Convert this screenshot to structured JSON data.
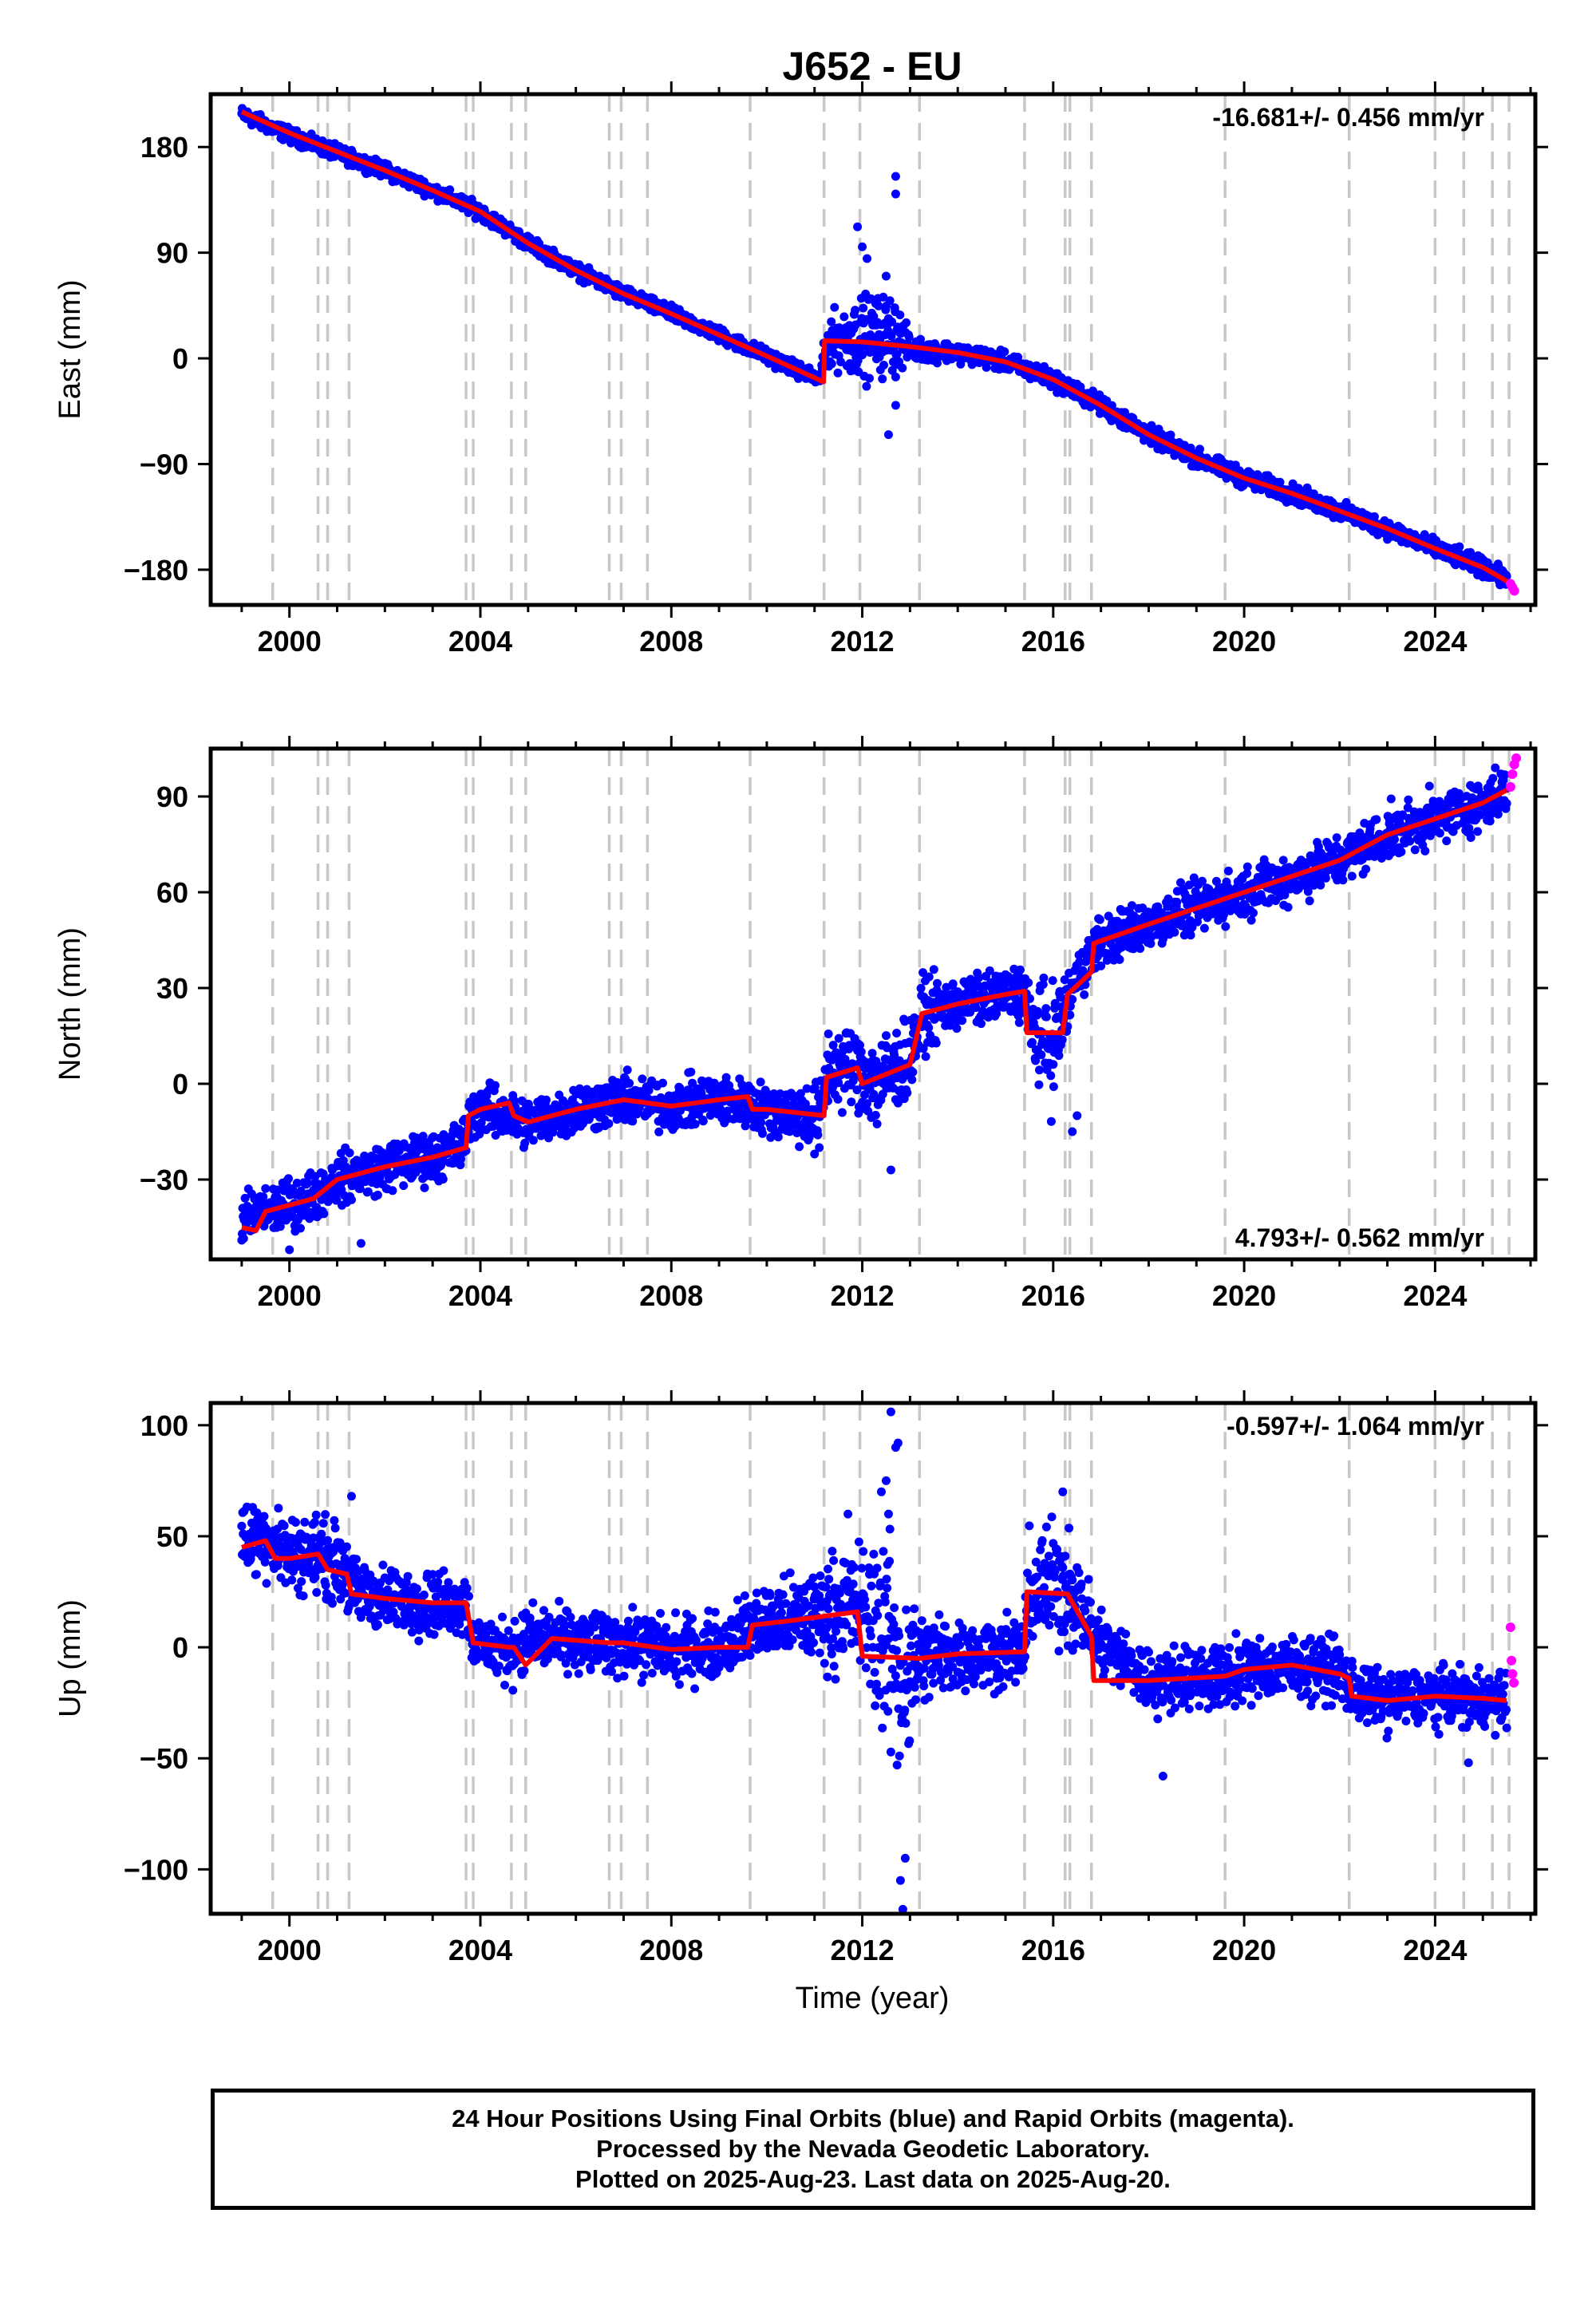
{
  "page": {
    "title": "J652 - EU",
    "xlabel": "Time (year)",
    "footer_lines": [
      "24 Hour Positions Using Final Orbits (blue) and Rapid Orbits (magenta).",
      "Processed by the Nevada Geodetic Laboratory.",
      "Plotted on 2025-Aug-23. Last data on 2025-Aug-20."
    ]
  },
  "colors": {
    "final": "#0000ff",
    "rapid": "#ff00ff",
    "model": "#ff0000",
    "steps": "#c8c8c8",
    "frame": "#000000"
  },
  "chart_data": [
    {
      "type": "scatter",
      "title": "J652 - EU",
      "ylabel": "East (mm)",
      "xlabel": "",
      "rate_text": "-16.681+/- 0.456 mm/yr",
      "rate_position": "top-right",
      "xlim": [
        1998.35,
        2026.1
      ],
      "ylim": [
        -210,
        225
      ],
      "xticks": [
        2000,
        2004,
        2008,
        2012,
        2016,
        2020,
        2024
      ],
      "yticks": [
        180,
        90,
        0,
        -90,
        -180
      ],
      "step_times": [
        1999.65,
        2000.6,
        2000.8,
        2001.25,
        2003.7,
        2003.85,
        2004.65,
        2004.95,
        2006.7,
        2006.95,
        2007.5,
        2009.65,
        2011.2,
        2011.95,
        2013.2,
        2015.4,
        2016.25,
        2016.35,
        2016.8,
        2019.6,
        2022.2,
        2024.0,
        2024.6,
        2025.2,
        2025.55
      ],
      "model": {
        "x": [
          1999.0,
          2000.0,
          2002.0,
          2003.0,
          2004.0,
          2005.0,
          2006.0,
          2007.0,
          2008.0,
          2009.0,
          2010.0,
          2011.19,
          2011.21,
          2012.0,
          2013.0,
          2014.0,
          2015.0,
          2016.0,
          2017.0,
          2018.0,
          2019.0,
          2020.0,
          2021.0,
          2022.0,
          2023.0,
          2024.0,
          2025.0,
          2025.6
        ],
        "y": [
          210,
          192,
          160,
          143,
          125,
          98,
          75,
          55,
          38,
          20,
          2,
          -20,
          15,
          14,
          10,
          5,
          -3,
          -18,
          -40,
          -65,
          -85,
          -102,
          -115,
          -130,
          -145,
          -162,
          -178,
          -192
        ]
      },
      "final_series": {
        "x": [
          1999.0,
          2000.0,
          2002.0,
          2003.0,
          2004.0,
          2005.0,
          2006.0,
          2007.0,
          2008.0,
          2009.0,
          2010.0,
          2011.1,
          2011.3,
          2012.0,
          2012.7,
          2013.0,
          2014.0,
          2015.0,
          2016.0,
          2017.0,
          2018.0,
          2019.0,
          2020.0,
          2021.0,
          2022.0,
          2023.0,
          2024.0,
          2025.0,
          2025.5
        ],
        "y": [
          208,
          190,
          160,
          143,
          125,
          98,
          75,
          55,
          38,
          20,
          2,
          -18,
          15,
          18,
          20,
          8,
          5,
          -3,
          -18,
          -40,
          -65,
          -85,
          -102,
          -115,
          -130,
          -145,
          -162,
          -178,
          -188
        ],
        "spread": [
          4,
          4,
          4,
          4,
          4,
          4,
          4,
          4,
          4,
          4,
          4,
          4,
          14,
          22,
          22,
          6,
          5,
          5,
          5,
          5,
          5,
          5,
          5,
          5,
          5,
          5,
          5,
          5,
          5
        ]
      },
      "outliers": {
        "x": [
          2011.9,
          2012.0,
          2012.1,
          2012.5,
          2012.7,
          2012.7,
          2012.55,
          2012.7
        ],
        "y": [
          112,
          95,
          85,
          70,
          155,
          140,
          -65,
          -40
        ]
      },
      "rapid": {
        "x": [
          2025.58,
          2025.62,
          2025.66
        ],
        "y": [
          -192,
          -195,
          -198
        ]
      }
    },
    {
      "type": "scatter",
      "ylabel": "North (mm)",
      "xlabel": "",
      "rate_text": "4.793+/- 0.562 mm/yr",
      "rate_position": "bottom-right",
      "xlim": [
        1998.35,
        2026.1
      ],
      "ylim": [
        -55,
        105
      ],
      "xticks": [
        2000,
        2004,
        2008,
        2012,
        2016,
        2020,
        2024
      ],
      "yticks": [
        90,
        60,
        30,
        0,
        -30
      ],
      "step_times": [
        1999.65,
        2000.6,
        2000.8,
        2001.25,
        2003.7,
        2003.85,
        2004.65,
        2004.95,
        2006.7,
        2006.95,
        2007.5,
        2009.65,
        2011.2,
        2011.95,
        2013.2,
        2015.4,
        2016.25,
        2016.35,
        2016.8,
        2019.6,
        2022.2,
        2024.0,
        2024.6,
        2025.2,
        2025.55
      ],
      "model": {
        "x": [
          1999.0,
          1999.3,
          1999.5,
          2000.0,
          2000.5,
          2001.0,
          2002.0,
          2003.0,
          2003.7,
          2003.75,
          2004.0,
          2004.6,
          2004.7,
          2005.0,
          2006.0,
          2007.0,
          2008.0,
          2009.0,
          2009.6,
          2009.7,
          2010.0,
          2011.2,
          2011.25,
          2011.9,
          2012.0,
          2013.0,
          2013.25,
          2014.0,
          2015.0,
          2015.4,
          2015.45,
          2016.2,
          2016.3,
          2016.8,
          2016.85,
          2018.0,
          2019.0,
          2020.0,
          2021.0,
          2022.0,
          2023.0,
          2024.0,
          2025.0,
          2025.5
        ],
        "y": [
          -45,
          -46,
          -40,
          -38,
          -36,
          -30,
          -26,
          -23,
          -20,
          -10,
          -8,
          -6,
          -10,
          -12,
          -8,
          -5,
          -7,
          -5,
          -4,
          -8,
          -8,
          -10,
          2,
          5,
          0,
          6,
          22,
          25,
          28,
          29,
          16,
          16,
          28,
          35,
          44,
          50,
          55,
          60,
          65,
          70,
          78,
          83,
          88,
          92
        ]
      },
      "final_series": {
        "x": [
          1999.0,
          1999.5,
          2000.0,
          2000.5,
          2001.0,
          2002.0,
          2003.0,
          2003.6,
          2003.8,
          2004.0,
          2005.0,
          2006.0,
          2007.0,
          2008.0,
          2009.0,
          2010.0,
          2011.1,
          2011.3,
          2011.9,
          2012.3,
          2013.0,
          2013.3,
          2014.0,
          2015.0,
          2015.4,
          2015.5,
          2016.0,
          2016.3,
          2016.5,
          2016.9,
          2018.0,
          2019.0,
          2020.0,
          2021.0,
          2022.0,
          2023.0,
          2024.0,
          2025.0,
          2025.5
        ],
        "y": [
          -42,
          -40,
          -38,
          -35,
          -30,
          -26,
          -23,
          -20,
          -10,
          -8,
          -12,
          -8,
          -5,
          -7,
          -5,
          -8,
          -10,
          5,
          5,
          0,
          8,
          22,
          25,
          28,
          29,
          18,
          12,
          25,
          33,
          44,
          50,
          55,
          60,
          65,
          70,
          78,
          83,
          88,
          92
        ],
        "spread": [
          5,
          5,
          5,
          5,
          5,
          5,
          5,
          5,
          5,
          5,
          5,
          5,
          5,
          5,
          5,
          5,
          7,
          8,
          8,
          10,
          8,
          7,
          5,
          5,
          6,
          8,
          12,
          7,
          5,
          5,
          5,
          5,
          5,
          5,
          5,
          5,
          5,
          5,
          5
        ]
      },
      "outliers": {
        "x": [
          2000.0,
          2001.5,
          2011.0,
          2011.1,
          2012.6,
          2016.4,
          2016.5
        ],
        "y": [
          -52,
          -50,
          -22,
          -20,
          -27,
          -15,
          -10
        ]
      },
      "rapid": {
        "x": [
          2025.58,
          2025.62,
          2025.66,
          2025.7
        ],
        "y": [
          93,
          97,
          100,
          102
        ]
      }
    },
    {
      "type": "scatter",
      "ylabel": "Up (mm)",
      "xlabel": "Time (year)",
      "rate_text": "-0.597+/- 1.064 mm/yr",
      "rate_position": "top-right",
      "xlim": [
        1998.35,
        2026.1
      ],
      "ylim": [
        -120,
        110
      ],
      "xticks": [
        2000,
        2004,
        2008,
        2012,
        2016,
        2020,
        2024
      ],
      "yticks": [
        100,
        50,
        0,
        -50,
        -100
      ],
      "step_times": [
        1999.65,
        2000.6,
        2000.8,
        2001.25,
        2003.7,
        2003.85,
        2004.65,
        2004.95,
        2006.7,
        2006.95,
        2007.5,
        2009.65,
        2011.2,
        2011.95,
        2013.2,
        2015.4,
        2016.25,
        2016.35,
        2016.8,
        2019.6,
        2022.2,
        2024.0,
        2024.6,
        2025.2,
        2025.55
      ],
      "model": {
        "x": [
          1999.0,
          1999.5,
          1999.7,
          2000.0,
          2000.6,
          2000.8,
          2001.2,
          2001.3,
          2002.0,
          2003.0,
          2003.7,
          2003.85,
          2004.6,
          2004.7,
          2004.95,
          2005.5,
          2006.7,
          2007.0,
          2008.0,
          2009.0,
          2009.6,
          2009.7,
          2010.5,
          2011.2,
          2011.9,
          2012.0,
          2013.2,
          2014.0,
          2015.4,
          2015.45,
          2016.3,
          2016.8,
          2016.85,
          2018.0,
          2019.6,
          2020.0,
          2021.0,
          2022.0,
          2022.2,
          2022.25,
          2023.0,
          2024.0,
          2025.0,
          2025.5
        ],
        "y": [
          45,
          48,
          40,
          40,
          42,
          35,
          33,
          24,
          22,
          20,
          20,
          2,
          0,
          0,
          -8,
          4,
          2,
          2,
          -1,
          0,
          0,
          10,
          12,
          14,
          16,
          -4,
          -5,
          -3,
          -2,
          25,
          24,
          5,
          -15,
          -15,
          -13,
          -10,
          -8,
          -12,
          -14,
          -22,
          -24,
          -22,
          -23,
          -24
        ]
      },
      "final_series": {
        "x": [
          1999.0,
          1999.5,
          2000.0,
          2000.6,
          2001.2,
          2001.3,
          2002.0,
          2003.0,
          2003.7,
          2003.85,
          2004.6,
          2005.0,
          2006.0,
          2007.0,
          2008.0,
          2009.0,
          2009.7,
          2010.5,
          2011.2,
          2011.9,
          2012.1,
          2012.5,
          2012.8,
          2013.2,
          2014.0,
          2015.4,
          2015.5,
          2016.3,
          2016.85,
          2018.0,
          2019.6,
          2020.0,
          2021.0,
          2022.0,
          2022.2,
          2023.0,
          2024.0,
          2025.0,
          2025.5
        ],
        "y": [
          48,
          50,
          42,
          42,
          35,
          25,
          22,
          20,
          20,
          2,
          -2,
          4,
          2,
          2,
          -1,
          0,
          10,
          12,
          16,
          18,
          14,
          5,
          -15,
          -5,
          -3,
          -2,
          25,
          30,
          5,
          -15,
          -13,
          -10,
          -8,
          -10,
          -20,
          -24,
          -22,
          -23,
          -24
        ],
        "spread": [
          11,
          11,
          11,
          11,
          11,
          10,
          9,
          9,
          9,
          9,
          9,
          9,
          9,
          9,
          9,
          9,
          10,
          12,
          15,
          18,
          22,
          30,
          30,
          15,
          10,
          10,
          16,
          18,
          10,
          9,
          9,
          9,
          9,
          9,
          9,
          8,
          8,
          8,
          8
        ]
      },
      "outliers": {
        "x": [
          2012.6,
          2012.7,
          2012.75,
          2012.8,
          2012.85,
          2012.9,
          2012.5,
          2012.55,
          2012.4,
          2011.7,
          2018.3,
          2024.7,
          2016.2,
          2001.3
        ],
        "y": [
          106,
          90,
          92,
          -105,
          -118,
          -95,
          75,
          60,
          70,
          60,
          -58,
          -52,
          70,
          68
        ]
      },
      "rapid": {
        "x": [
          2025.58,
          2025.6,
          2025.62,
          2025.65
        ],
        "y": [
          9,
          -6,
          -12,
          -16
        ]
      }
    }
  ]
}
